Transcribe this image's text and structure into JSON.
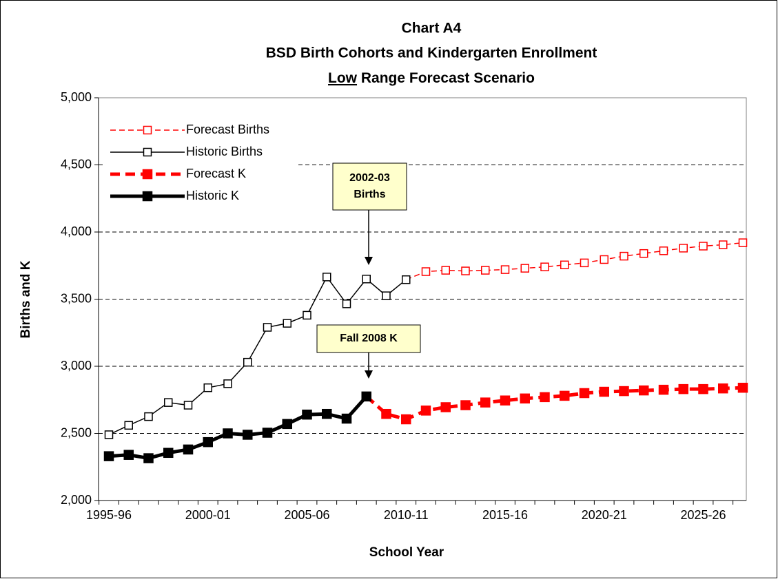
{
  "chart_data": {
    "type": "line",
    "title": [
      "Chart A4",
      "BSD Birth Cohorts and Kindergarten Enrollment"
    ],
    "subtitle": [
      "Low",
      " Range Forecast Scenario"
    ],
    "x_label": "School Year",
    "y_label": "Births and K",
    "categories": [
      "1995-96",
      null,
      null,
      null,
      null,
      "2000-01",
      null,
      null,
      null,
      null,
      "2005-06",
      null,
      null,
      null,
      null,
      "2010-11",
      null,
      null,
      null,
      null,
      "2015-16",
      null,
      null,
      null,
      null,
      "2020-21",
      null,
      null,
      null,
      null,
      "2025-26",
      null,
      null
    ],
    "ylim": [
      2000,
      5000
    ],
    "yticks": [
      {
        "value": 2000,
        "label": "2,000"
      },
      {
        "value": 2500,
        "label": "2,500"
      },
      {
        "value": 3000,
        "label": "3,000"
      },
      {
        "value": 3500,
        "label": "3,500"
      },
      {
        "value": 4000,
        "label": "4,000"
      },
      {
        "value": 4500,
        "label": "4,500"
      },
      {
        "value": 5000,
        "label": "5,000"
      }
    ],
    "grid": true,
    "legend": "upper left",
    "series": [
      {
        "name": "Forecast Births",
        "color": "#ff0000",
        "dash": true,
        "marker": "open",
        "values": [
          null,
          null,
          null,
          null,
          null,
          null,
          null,
          null,
          null,
          null,
          null,
          null,
          null,
          null,
          null,
          3645,
          3705,
          3715,
          3710,
          3715,
          3720,
          3730,
          3740,
          3755,
          3770,
          3795,
          3820,
          3840,
          3860,
          3880,
          3895,
          3905,
          3920
        ]
      },
      {
        "name": "Historic Births",
        "color": "#000000",
        "dash": false,
        "marker": "open",
        "values": [
          2490,
          2560,
          2625,
          2730,
          2710,
          2840,
          2870,
          3030,
          3290,
          3320,
          3380,
          3665,
          3465,
          3650,
          3525,
          3645,
          null,
          null,
          null,
          null,
          null,
          null,
          null,
          null,
          null,
          null,
          null,
          null,
          null,
          null,
          null,
          null,
          null
        ]
      },
      {
        "name": "Forecast K",
        "color": "#ff0000",
        "dash": true,
        "marker": "filled",
        "values": [
          null,
          null,
          null,
          null,
          null,
          null,
          null,
          null,
          null,
          null,
          null,
          null,
          null,
          2775,
          2645,
          2605,
          2670,
          2695,
          2710,
          2730,
          2745,
          2760,
          2770,
          2780,
          2800,
          2810,
          2815,
          2820,
          2825,
          2830,
          2830,
          2835,
          2840
        ]
      },
      {
        "name": "Historic K",
        "color": "#000000",
        "dash": false,
        "marker": "filled",
        "values": [
          2330,
          2340,
          2315,
          2355,
          2380,
          2435,
          2500,
          2490,
          2505,
          2570,
          2640,
          2645,
          2610,
          2775,
          null,
          null,
          null,
          null,
          null,
          null,
          null,
          null,
          null,
          null,
          null,
          null,
          null,
          null,
          null,
          null,
          null,
          null,
          null
        ]
      }
    ],
    "annotations": [
      {
        "text": [
          "2002-03",
          "Births"
        ],
        "index": 13,
        "series": 1
      },
      {
        "text": [
          "Fall 2008 K"
        ],
        "index": 13,
        "series": 3
      }
    ]
  }
}
